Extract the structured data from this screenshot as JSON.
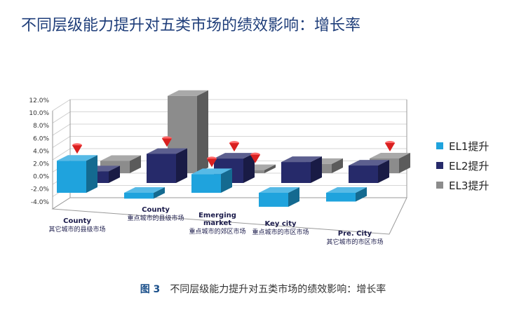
{
  "title": "不同层级能力提升对五类市场的绩效影响：增长率",
  "caption": {
    "figure": "图 3",
    "text": "不同层级能力提升对五类市场的绩效影响：增长率"
  },
  "chart_data": {
    "type": "bar",
    "subtype": "3d-clustered",
    "title": "不同层级能力提升对五类市场的绩效影响：增长率",
    "categories": [
      {
        "en": "County",
        "zh": "其它城市的县级市场"
      },
      {
        "en": "County",
        "zh": "重点城市的县级市场"
      },
      {
        "en": "Emerging market",
        "zh": "重点城市的郊区市场"
      },
      {
        "en": "Key city",
        "zh": "重点城市的市区市场"
      },
      {
        "en": "Pre. City",
        "zh": "其它城市的市区市场"
      }
    ],
    "series": [
      {
        "name": "EL1提升",
        "color": "#1fa3dd",
        "values": [
          5.5,
          -1.0,
          3.2,
          -2.4,
          -1.5
        ]
      },
      {
        "name": "EL2提升",
        "color": "#262a6a",
        "values": [
          2.0,
          5.0,
          4.2,
          3.6,
          3.0
        ]
      },
      {
        "name": "EL3提升",
        "color": "#8c8c8c",
        "values": [
          2.0,
          12.6,
          0.5,
          1.5,
          2.4
        ]
      }
    ],
    "highlighted": [
      {
        "series": 0,
        "category": 0
      },
      {
        "series": 1,
        "category": 1
      },
      {
        "series": 2,
        "category": 2
      },
      {
        "series": 1,
        "category": 2
      },
      {
        "series": 0,
        "category": 2
      },
      {
        "series": 2,
        "category": 4
      }
    ],
    "marker_color": "#d92020",
    "yticks": [
      "12.0%",
      "10.0%",
      "8.0%",
      "6.0%",
      "4.0%",
      "2.0%",
      "0.0%",
      "-2.0%",
      "-4.0%"
    ],
    "ylim": [
      -4,
      12
    ],
    "legend_position": "right",
    "grid": true
  }
}
